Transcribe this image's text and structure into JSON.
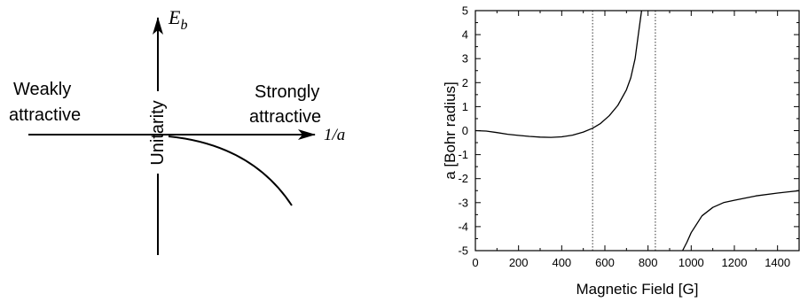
{
  "diagram": {
    "y_axis_label": "E",
    "y_axis_label_sub": "b",
    "x_axis_label": "1/a",
    "center_label": "Unitarity",
    "left_label_line1": "Weakly",
    "left_label_line2": "attractive",
    "right_label_line1": "Strongly",
    "right_label_line2": "attractive"
  },
  "chart_data": {
    "type": "line",
    "title": "",
    "xlabel": "Magnetic Field [G]",
    "ylabel": "a [Bohr radius]",
    "xlim": [
      0,
      1500
    ],
    "ylim": [
      -5,
      5
    ],
    "x_ticks": [
      0,
      200,
      400,
      600,
      800,
      1000,
      1200,
      1400
    ],
    "y_ticks": [
      5,
      4,
      3,
      2,
      1,
      0,
      -1,
      -2,
      -3,
      -4,
      -5
    ],
    "grid": false,
    "vlines": [
      543,
      834
    ],
    "series": [
      {
        "branch": "below-resonance",
        "x": [
          0,
          50,
          100,
          150,
          200,
          250,
          300,
          350,
          400,
          450,
          500,
          543,
          580,
          620,
          660,
          700,
          720,
          740,
          755,
          770
        ],
        "y": [
          0,
          -0.02,
          -0.08,
          -0.15,
          -0.2,
          -0.24,
          -0.27,
          -0.28,
          -0.26,
          -0.19,
          -0.06,
          0.1,
          0.3,
          0.62,
          1.05,
          1.7,
          2.2,
          3.0,
          4.0,
          5.0
        ]
      },
      {
        "branch": "above-resonance",
        "x": [
          960,
          980,
          1000,
          1050,
          1100,
          1150,
          1200,
          1300,
          1400,
          1500
        ],
        "y": [
          -5.0,
          -4.65,
          -4.25,
          -3.55,
          -3.2,
          -3.0,
          -2.9,
          -2.72,
          -2.6,
          -2.5
        ]
      }
    ]
  }
}
